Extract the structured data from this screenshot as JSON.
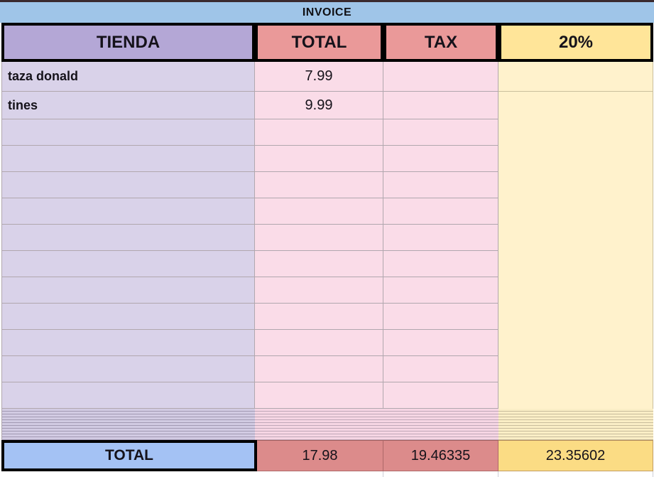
{
  "title": "INVOICE",
  "colors": {
    "title_bar": "#9fc5e8",
    "header_tienda": "#b4a7d6",
    "header_total_tax": "#ea9999",
    "header_pct": "#ffe599",
    "body_tienda": "#d9d2e9",
    "body_values": "#fadce8",
    "body_pct": "#fff2cc",
    "footer_label": "#a4c2f4",
    "footer_values": "#dc8b8b",
    "footer_pct": "#fbdc84",
    "grid_border": "#b1a7ae",
    "selection_border": "#000000"
  },
  "table": {
    "columns": [
      {
        "key": "tienda",
        "label": "TIENDA"
      },
      {
        "key": "total",
        "label": "TOTAL"
      },
      {
        "key": "tax",
        "label": "TAX"
      },
      {
        "key": "pct",
        "label": "20%"
      }
    ],
    "rows": [
      {
        "tienda": "taza donald",
        "total": "7.99",
        "tax": "",
        "pct": ""
      },
      {
        "tienda": "tines",
        "total": "9.99",
        "tax": "",
        "pct": ""
      },
      {
        "tienda": "",
        "total": "",
        "tax": "",
        "pct": ""
      },
      {
        "tienda": "",
        "total": "",
        "tax": "",
        "pct": ""
      },
      {
        "tienda": "",
        "total": "",
        "tax": "",
        "pct": ""
      },
      {
        "tienda": "",
        "total": "",
        "tax": "",
        "pct": ""
      },
      {
        "tienda": "",
        "total": "",
        "tax": "",
        "pct": ""
      },
      {
        "tienda": "",
        "total": "",
        "tax": "",
        "pct": ""
      },
      {
        "tienda": "",
        "total": "",
        "tax": "",
        "pct": ""
      },
      {
        "tienda": "",
        "total": "",
        "tax": "",
        "pct": ""
      },
      {
        "tienda": "",
        "total": "",
        "tax": "",
        "pct": ""
      },
      {
        "tienda": "",
        "total": "",
        "tax": "",
        "pct": ""
      },
      {
        "tienda": "",
        "total": "",
        "tax": "",
        "pct": ""
      }
    ],
    "footer": {
      "label": "TOTAL",
      "total": "17.98",
      "tax": "19.46335",
      "pct": "23.35602"
    }
  }
}
